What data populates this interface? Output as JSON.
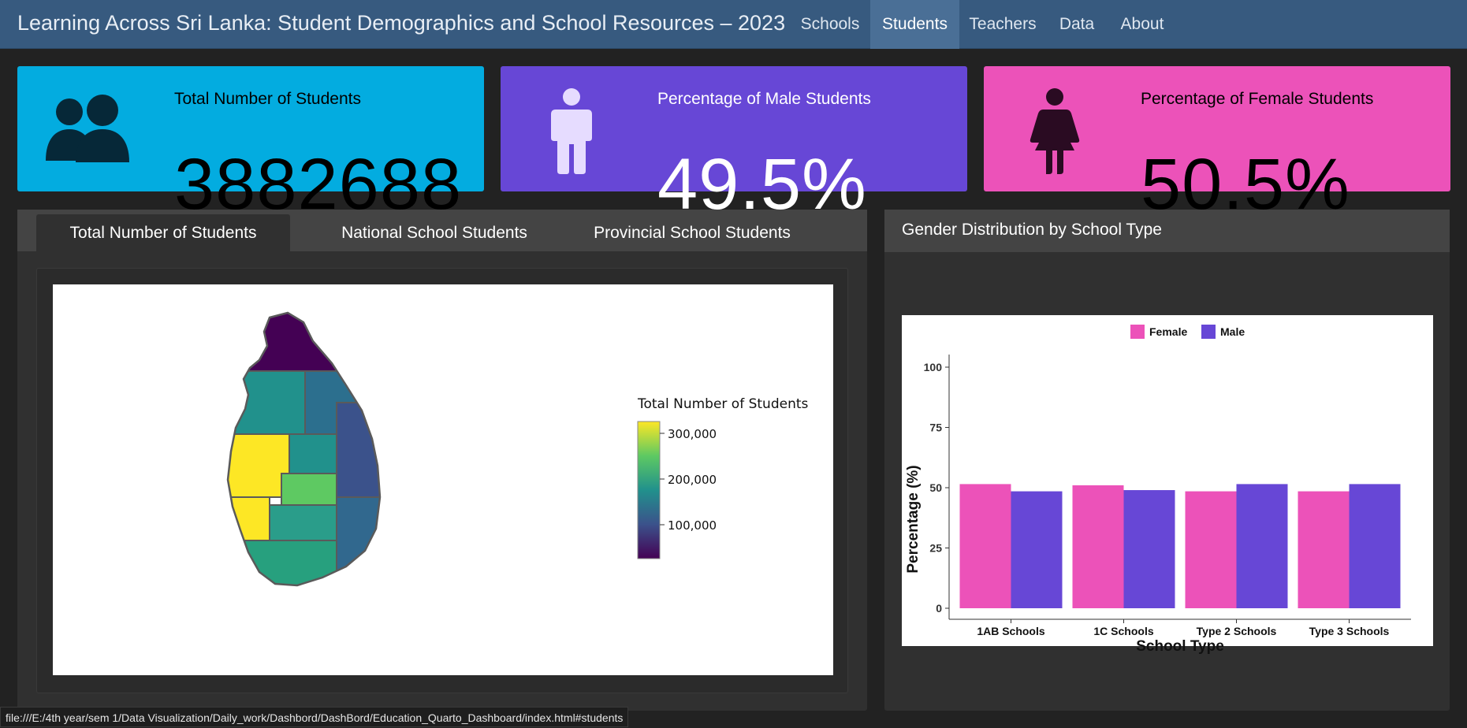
{
  "app": {
    "title": "Learning Across Sri Lanka: Student Demographics and School Resources – 2023"
  },
  "nav": [
    {
      "label": "Schools",
      "active": false
    },
    {
      "label": "Students",
      "active": true
    },
    {
      "label": "Teachers",
      "active": false
    },
    {
      "label": "Data",
      "active": false
    },
    {
      "label": "About",
      "active": false
    }
  ],
  "value_boxes": [
    {
      "title": "Total Number of Students",
      "value": "3882688",
      "icon": "people-icon",
      "bg": "#03ace0",
      "fg": "#000000"
    },
    {
      "title": "Percentage of Male Students",
      "value": "49.5%",
      "icon": "male-icon",
      "bg": "#6747d6",
      "fg": "#ffffff"
    },
    {
      "title": "Percentage of Female Students",
      "value": "50.5%",
      "icon": "female-icon",
      "bg": "#ec52b9",
      "fg": "#000000"
    }
  ],
  "map_card": {
    "tabs": [
      {
        "label": "Total Number of Students",
        "active": true
      },
      {
        "label": "National School Students",
        "active": false
      },
      {
        "label": "Provincial School Students",
        "active": false
      }
    ],
    "legend": {
      "title": "Total Number of Students",
      "ticks": [
        "300,000",
        "200,000",
        "100,000"
      ],
      "colormap": [
        "#440154",
        "#3b528b",
        "#21918c",
        "#5ec962",
        "#fde725"
      ]
    }
  },
  "bar_card": {
    "title": "Gender Distribution by School Type"
  },
  "chart_data": {
    "type": "bar",
    "categories": [
      "1AB Schools",
      "1C Schools",
      "Type 2 Schools",
      "Type 3 Schools"
    ],
    "series": [
      {
        "name": "Female",
        "values": [
          51.5,
          51.0,
          48.5,
          48.5
        ],
        "color": "#ec52b9"
      },
      {
        "name": "Male",
        "values": [
          48.5,
          49.0,
          51.5,
          51.5
        ],
        "color": "#6747d6"
      }
    ],
    "title": "",
    "xlabel": "School Type",
    "ylabel": "Percentage (%)",
    "ylim": [
      0,
      100
    ],
    "yticks": [
      "0",
      "25",
      "50",
      "75",
      "100"
    ],
    "grid": false,
    "legend_position": "top"
  },
  "status_bar": {
    "text": "file:///E:/4th year/sem 1/Data Visualization/Daily_work/Dashbord/DashBord/Education_Quarto_Dashboard/index.html#students"
  }
}
